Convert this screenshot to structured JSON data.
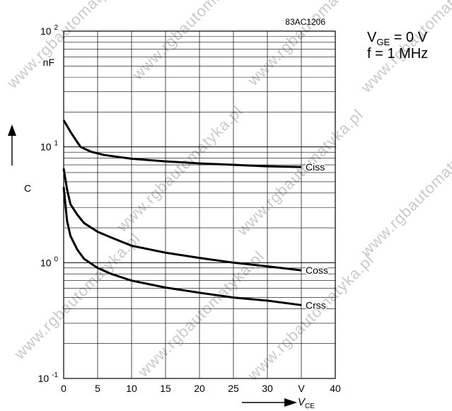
{
  "watermark": "www.rgbautomatyka.pl",
  "conditions": {
    "line1": {
      "symbol": "V",
      "subscript": "GE",
      "rest": " = 0 V"
    },
    "line2": "f = 1 MHz"
  },
  "chart_data": {
    "type": "line",
    "code": "83AC1206",
    "xlabel": {
      "symbol": "V",
      "subscript": "CE"
    },
    "ylabel": "C",
    "yunit": "nF",
    "xlim": [
      0,
      40
    ],
    "ylim": [
      0.1,
      100
    ],
    "yscale": "log",
    "grid": true,
    "x_ticks": [
      {
        "value": 0,
        "label": "0"
      },
      {
        "value": 5,
        "label": "5"
      },
      {
        "value": 10,
        "label": "10"
      },
      {
        "value": 15,
        "label": "15"
      },
      {
        "value": 20,
        "label": "20"
      },
      {
        "value": 25,
        "label": "25"
      },
      {
        "value": 30,
        "label": "30"
      },
      {
        "value": 35,
        "label": "V"
      },
      {
        "value": 40,
        "label": "40"
      }
    ],
    "y_ticks": [
      {
        "value": 100,
        "base": "10",
        "exp": "2"
      },
      {
        "value": 10,
        "base": "10",
        "exp": "1"
      },
      {
        "value": 1,
        "base": "10",
        "exp": "0"
      },
      {
        "value": 0.1,
        "base": "10",
        "exp": "-1"
      }
    ],
    "series": [
      {
        "name": "Ciss",
        "points": [
          [
            0,
            17
          ],
          [
            1,
            13.5
          ],
          [
            2,
            11
          ],
          [
            2.5,
            10
          ],
          [
            4,
            9.1
          ],
          [
            6,
            8.5
          ],
          [
            10,
            7.9
          ],
          [
            15,
            7.5
          ],
          [
            20,
            7.2
          ],
          [
            25,
            7.0
          ],
          [
            30,
            6.8
          ],
          [
            35,
            6.7
          ]
        ]
      },
      {
        "name": "Coss",
        "points": [
          [
            0,
            6.5
          ],
          [
            0.5,
            4.3
          ],
          [
            1,
            3.2
          ],
          [
            2,
            2.6
          ],
          [
            3,
            2.2
          ],
          [
            5,
            1.85
          ],
          [
            7,
            1.65
          ],
          [
            10,
            1.4
          ],
          [
            15,
            1.22
          ],
          [
            20,
            1.1
          ],
          [
            25,
            1.0
          ],
          [
            30,
            0.93
          ],
          [
            35,
            0.86
          ]
        ]
      },
      {
        "name": "Crss",
        "points": [
          [
            0,
            4.5
          ],
          [
            0.5,
            2.3
          ],
          [
            1,
            1.7
          ],
          [
            2,
            1.3
          ],
          [
            3,
            1.08
          ],
          [
            5,
            0.9
          ],
          [
            7,
            0.8
          ],
          [
            10,
            0.7
          ],
          [
            15,
            0.61
          ],
          [
            20,
            0.55
          ],
          [
            25,
            0.5
          ],
          [
            30,
            0.47
          ],
          [
            35,
            0.43
          ]
        ]
      }
    ]
  }
}
